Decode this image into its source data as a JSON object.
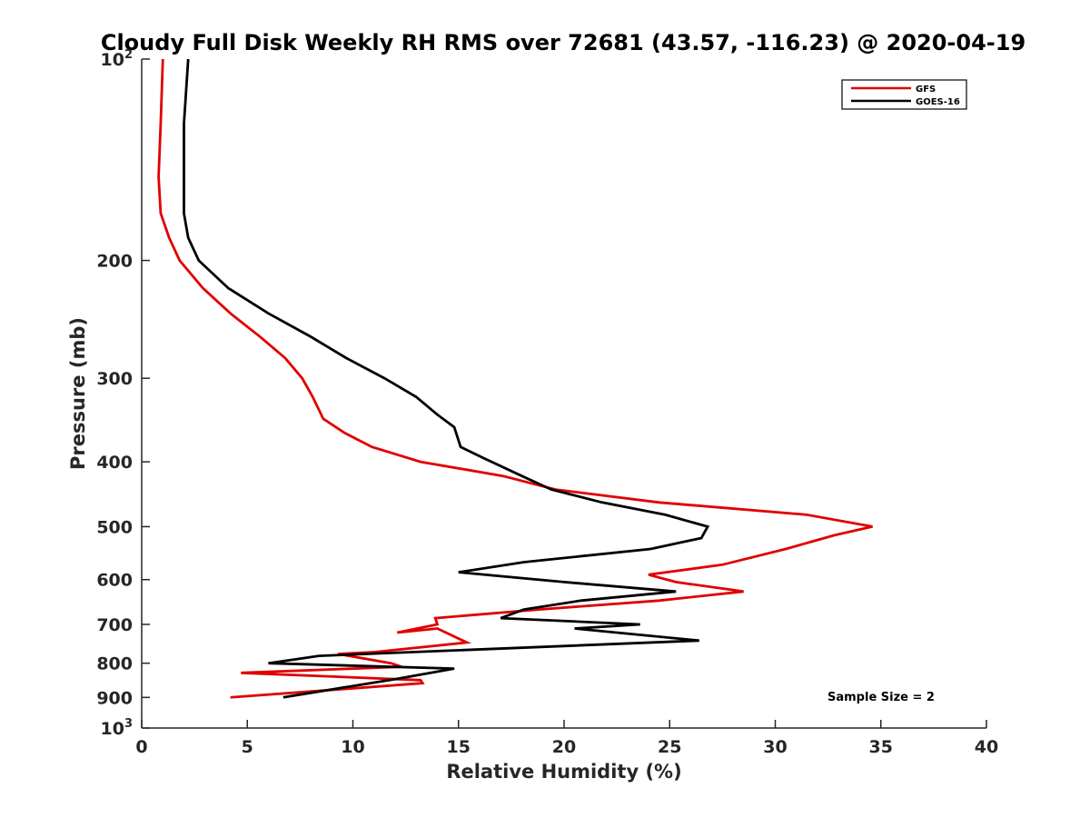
{
  "chart_data": {
    "type": "line",
    "title": "Cloudy Full Disk Weekly RH RMS over 72681 (43.57, -116.23) @ 2020-04-19",
    "xlabel": "Relative Humidity (%)",
    "ylabel": "Pressure (mb)",
    "xlim": [
      0,
      40
    ],
    "ylim": [
      100,
      1000
    ],
    "y_scale": "log",
    "y_reversed": true,
    "x_ticks": [
      "0",
      "5",
      "10",
      "15",
      "20",
      "25",
      "30",
      "35",
      "40"
    ],
    "y_ticks": [
      {
        "value": 100,
        "base": "10",
        "exp": "2"
      },
      {
        "value": 200,
        "label": "200"
      },
      {
        "value": 300,
        "label": "300"
      },
      {
        "value": 400,
        "label": "400"
      },
      {
        "value": 500,
        "label": "500"
      },
      {
        "value": 600,
        "label": "600"
      },
      {
        "value": 700,
        "label": "700"
      },
      {
        "value": 800,
        "label": "800"
      },
      {
        "value": 900,
        "label": "900"
      },
      {
        "value": 1000,
        "base": "10",
        "exp": "3"
      }
    ],
    "grid": false,
    "legend_position": "top-right",
    "annotation": "Sample Size = 2",
    "series": [
      {
        "name": "GFS",
        "color": "#e00000",
        "points": [
          [
            1.0,
            100
          ],
          [
            0.9,
            125
          ],
          [
            0.8,
            150
          ],
          [
            0.9,
            170
          ],
          [
            1.3,
            185
          ],
          [
            1.8,
            200
          ],
          [
            2.9,
            220
          ],
          [
            4.2,
            240
          ],
          [
            5.6,
            260
          ],
          [
            6.8,
            280
          ],
          [
            7.6,
            300
          ],
          [
            8.1,
            320
          ],
          [
            8.6,
            345
          ],
          [
            9.6,
            362
          ],
          [
            10.9,
            380
          ],
          [
            13.2,
            400
          ],
          [
            17.1,
            420
          ],
          [
            19.6,
            440
          ],
          [
            24.5,
            460
          ],
          [
            31.5,
            480
          ],
          [
            34.6,
            500
          ],
          [
            32.8,
            515
          ],
          [
            30.5,
            540
          ],
          [
            27.5,
            570
          ],
          [
            24.0,
            590
          ],
          [
            25.3,
            605
          ],
          [
            28.5,
            625
          ],
          [
            24.5,
            645
          ],
          [
            18.8,
            665
          ],
          [
            13.9,
            685
          ],
          [
            14.0,
            700
          ],
          [
            12.1,
            720
          ],
          [
            14.0,
            710
          ],
          [
            15.4,
            745
          ],
          [
            11.0,
            770
          ],
          [
            9.3,
            775
          ],
          [
            11.8,
            800
          ],
          [
            12.3,
            810
          ],
          [
            4.7,
            827
          ],
          [
            13.2,
            848
          ],
          [
            13.3,
            857
          ],
          [
            4.2,
            900
          ]
        ]
      },
      {
        "name": "GOES-16",
        "color": "#000000",
        "points": [
          [
            2.2,
            100
          ],
          [
            2.0,
            125
          ],
          [
            2.0,
            150
          ],
          [
            2.0,
            170
          ],
          [
            2.2,
            185
          ],
          [
            2.7,
            200
          ],
          [
            4.1,
            220
          ],
          [
            6.0,
            240
          ],
          [
            8.0,
            260
          ],
          [
            9.7,
            280
          ],
          [
            11.5,
            300
          ],
          [
            13.0,
            320
          ],
          [
            14.0,
            340
          ],
          [
            14.8,
            355
          ],
          [
            15.1,
            380
          ],
          [
            16.2,
            395
          ],
          [
            18.0,
            420
          ],
          [
            19.4,
            440
          ],
          [
            21.8,
            460
          ],
          [
            24.8,
            480
          ],
          [
            26.8,
            500
          ],
          [
            26.5,
            520
          ],
          [
            24.1,
            540
          ],
          [
            18.1,
            565
          ],
          [
            15.0,
            585
          ],
          [
            20.0,
            605
          ],
          [
            25.3,
            625
          ],
          [
            20.8,
            645
          ],
          [
            18.1,
            665
          ],
          [
            17.0,
            685
          ],
          [
            23.6,
            700
          ],
          [
            20.5,
            710
          ],
          [
            26.4,
            740
          ],
          [
            8.4,
            780
          ],
          [
            6.0,
            800
          ],
          [
            14.8,
            815
          ],
          [
            12.0,
            845
          ],
          [
            6.7,
            900
          ]
        ]
      }
    ]
  }
}
